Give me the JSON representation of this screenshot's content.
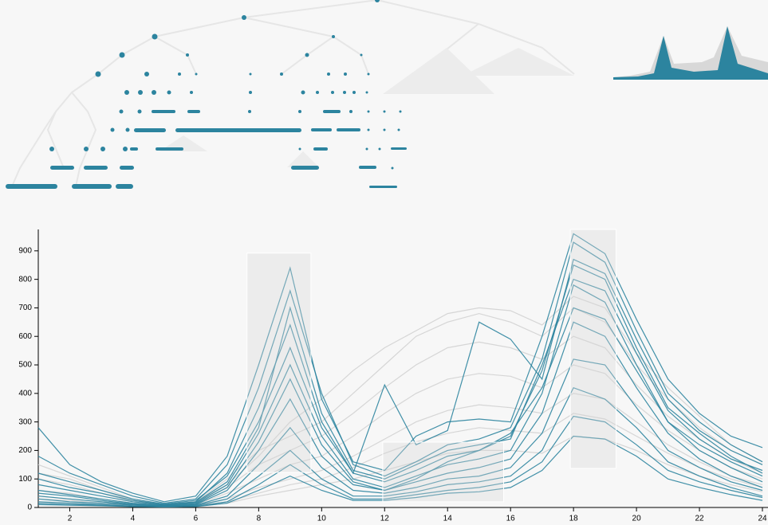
{
  "chart_data": {
    "type": "line",
    "x": [
      1,
      2,
      3,
      4,
      5,
      6,
      7,
      8,
      9,
      10,
      11,
      12,
      13,
      14,
      15,
      16,
      17,
      18,
      19,
      20,
      21,
      22,
      23,
      24
    ],
    "xlim": [
      1,
      24
    ],
    "xticks": [
      2,
      4,
      6,
      8,
      10,
      12,
      14,
      16,
      18,
      20,
      22,
      24
    ],
    "ylim": [
      0,
      975
    ],
    "yticks": [
      0,
      100,
      200,
      300,
      400,
      500,
      600,
      700,
      800,
      900
    ],
    "series": [
      {
        "color": "#d2d2d2",
        "values": [
          150,
          110,
          70,
          30,
          10,
          20,
          100,
          200,
          250,
          300,
          400,
          500,
          600,
          650,
          680,
          650,
          600,
          700,
          650,
          500,
          380,
          280,
          200,
          150
        ]
      },
      {
        "color": "#d2d2d2",
        "values": [
          100,
          80,
          50,
          20,
          8,
          15,
          70,
          150,
          200,
          250,
          330,
          420,
          500,
          560,
          580,
          560,
          520,
          600,
          560,
          430,
          320,
          240,
          170,
          120
        ]
      },
      {
        "color": "#d2d2d2",
        "values": [
          60,
          50,
          30,
          15,
          5,
          10,
          50,
          100,
          150,
          180,
          250,
          330,
          400,
          450,
          470,
          460,
          420,
          500,
          470,
          360,
          270,
          200,
          140,
          100
        ]
      },
      {
        "color": "#d2d2d2",
        "values": [
          40,
          30,
          20,
          10,
          4,
          8,
          30,
          70,
          100,
          130,
          180,
          240,
          300,
          340,
          360,
          350,
          330,
          400,
          380,
          300,
          220,
          160,
          110,
          80
        ]
      },
      {
        "color": "#d2d2d2",
        "values": [
          30,
          25,
          15,
          8,
          3,
          6,
          20,
          50,
          80,
          100,
          140,
          190,
          230,
          260,
          280,
          270,
          260,
          330,
          310,
          250,
          190,
          140,
          100,
          70
        ]
      },
      {
        "color": "#d2d2d2",
        "values": [
          120,
          100,
          60,
          25,
          10,
          20,
          80,
          180,
          300,
          380,
          480,
          560,
          620,
          680,
          700,
          690,
          640,
          740,
          700,
          540,
          420,
          320,
          220,
          160
        ]
      },
      {
        "color": "#d2d2d2",
        "values": [
          20,
          15,
          10,
          5,
          2,
          4,
          15,
          40,
          60,
          80,
          100,
          130,
          160,
          190,
          200,
          200,
          190,
          250,
          240,
          200,
          150,
          110,
          80,
          55
        ]
      },
      {
        "color": "#2c849f",
        "values": [
          180,
          120,
          80,
          40,
          15,
          30,
          150,
          420,
          760,
          400,
          150,
          110,
          160,
          220,
          240,
          280,
          520,
          930,
          860,
          620,
          400,
          300,
          220,
          160
        ]
      },
      {
        "color": "#2c849f",
        "values": [
          100,
          70,
          50,
          25,
          10,
          20,
          120,
          350,
          640,
          300,
          120,
          90,
          130,
          180,
          200,
          250,
          480,
          850,
          800,
          560,
          350,
          260,
          180,
          120
        ]
      },
      {
        "color": "#2c849f",
        "values": [
          60,
          45,
          30,
          15,
          8,
          15,
          80,
          260,
          500,
          250,
          100,
          70,
          110,
          150,
          170,
          200,
          400,
          780,
          720,
          500,
          300,
          200,
          140,
          90
        ]
      },
      {
        "color": "#2c849f",
        "values": [
          40,
          30,
          20,
          10,
          5,
          10,
          60,
          200,
          380,
          180,
          80,
          60,
          90,
          120,
          140,
          170,
          330,
          650,
          600,
          420,
          260,
          170,
          110,
          70
        ]
      },
      {
        "color": "#2c849f",
        "values": [
          30,
          20,
          15,
          8,
          4,
          8,
          40,
          150,
          280,
          140,
          60,
          50,
          70,
          100,
          110,
          140,
          260,
          520,
          500,
          350,
          200,
          140,
          90,
          60
        ]
      },
      {
        "color": "#2c849f",
        "values": [
          20,
          15,
          10,
          5,
          3,
          6,
          30,
          110,
          200,
          100,
          40,
          40,
          55,
          80,
          90,
          110,
          200,
          420,
          380,
          280,
          160,
          110,
          70,
          40
        ]
      },
      {
        "color": "#2c849f",
        "values": [
          15,
          10,
          8,
          4,
          2,
          4,
          20,
          80,
          150,
          80,
          30,
          30,
          45,
          60,
          70,
          90,
          160,
          320,
          300,
          220,
          130,
          90,
          60,
          35
        ]
      },
      {
        "color": "#2c849f",
        "values": [
          280,
          150,
          90,
          50,
          20,
          40,
          180,
          500,
          840,
          380,
          160,
          130,
          250,
          300,
          310,
          300,
          600,
          960,
          890,
          660,
          450,
          330,
          250,
          210
        ]
      },
      {
        "color": "#2c849f",
        "values": [
          10,
          8,
          6,
          3,
          2,
          3,
          15,
          60,
          110,
          60,
          25,
          25,
          35,
          50,
          55,
          70,
          130,
          250,
          240,
          180,
          100,
          70,
          45,
          25
        ]
      },
      {
        "color": "#2c849f",
        "values": [
          120,
          90,
          60,
          30,
          12,
          25,
          110,
          300,
          560,
          280,
          120,
          430,
          220,
          270,
          650,
          590,
          450,
          870,
          820,
          590,
          380,
          270,
          200,
          150
        ]
      },
      {
        "color": "#2c849f",
        "values": [
          50,
          40,
          25,
          12,
          6,
          12,
          70,
          230,
          450,
          220,
          90,
          60,
          100,
          160,
          200,
          260,
          420,
          700,
          660,
          480,
          300,
          220,
          160,
          110
        ]
      },
      {
        "color": "#2c849f",
        "values": [
          80,
          60,
          40,
          20,
          9,
          18,
          90,
          280,
          700,
          330,
          130,
          100,
          150,
          200,
          220,
          240,
          500,
          800,
          760,
          540,
          340,
          240,
          170,
          130
        ]
      }
    ],
    "brushes": [
      {
        "x": [
          7.63,
          9.66
        ],
        "y": [
          123,
          892
        ]
      },
      {
        "x": [
          11.94,
          15.78
        ],
        "y": [
          20,
          229
        ]
      },
      {
        "x": [
          17.9,
          19.35
        ],
        "y": [
          137,
          975
        ]
      }
    ]
  }
}
